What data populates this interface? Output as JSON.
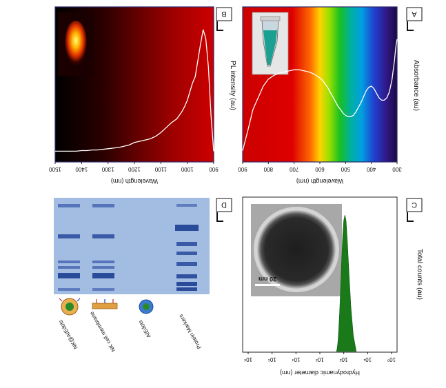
{
  "note_rendering": "",
  "panels": {
    "A": {
      "letter": "A",
      "xlabel": "Wavelength (nm)",
      "ylabel": "Absorbance (au)"
    },
    "B": {
      "letter": "B",
      "xlabel": "Wavelength (nm)",
      "ylabel": "PL intensity (au)"
    },
    "C": {
      "letter": "C",
      "xlabel": "Hydrodynamic diameter (nm)",
      "ylabel": "Total counts (au)",
      "scale_bar": "20 nm"
    },
    "D": {
      "letter": "D",
      "lanes": [
        "Protein Markers",
        "AIEdots",
        "NK cell membrane",
        "NK@AIEdots"
      ]
    }
  },
  "colors": {
    "panelB_bg_dark": "#000000",
    "panelB_bg_red": "#cc0000",
    "dls_fill": "#1a7a1a",
    "gel_bg": "#9fb8e0",
    "band": "#3a5aa8"
  },
  "chart_data": [
    {
      "type": "line",
      "panel": "A",
      "xlabel": "Wavelength (nm)",
      "ylabel": "Absorbance (au)",
      "xlim": [
        300,
        900
      ],
      "xticks": [
        "300",
        "400",
        "500",
        "600",
        "700",
        "800",
        "900"
      ],
      "x_reversed": true,
      "x": [
        300,
        305,
        310,
        320,
        330,
        340,
        350,
        360,
        370,
        380,
        390,
        400,
        410,
        420,
        430,
        440,
        450,
        460,
        470,
        480,
        490,
        500,
        510,
        520,
        530,
        540,
        550,
        560,
        570,
        580,
        590,
        600,
        620,
        640,
        660,
        680,
        700,
        720,
        740,
        760,
        780,
        800,
        820,
        840,
        860,
        880,
        900
      ],
      "y": [
        1.0,
        0.93,
        0.82,
        0.65,
        0.55,
        0.5,
        0.48,
        0.48,
        0.5,
        0.54,
        0.58,
        0.6,
        0.59,
        0.56,
        0.51,
        0.46,
        0.42,
        0.38,
        0.35,
        0.34,
        0.34,
        0.35,
        0.37,
        0.4,
        0.43,
        0.47,
        0.51,
        0.55,
        0.59,
        0.62,
        0.65,
        0.67,
        0.7,
        0.72,
        0.73,
        0.74,
        0.74,
        0.73,
        0.72,
        0.71,
        0.69,
        0.66,
        0.6,
        0.5,
        0.4,
        0.22,
        0.05
      ]
    },
    {
      "type": "line",
      "panel": "B",
      "xlabel": "Wavelength (nm)",
      "ylabel": "PL intensity (au)",
      "xlim": [
        900,
        1500
      ],
      "xticks": [
        "900",
        "1000",
        "1100",
        "1200",
        "1300",
        "1400",
        "1500"
      ],
      "x_reversed": true,
      "x": [
        900,
        910,
        920,
        930,
        940,
        950,
        960,
        970,
        980,
        990,
        1000,
        1010,
        1020,
        1030,
        1040,
        1060,
        1080,
        1100,
        1120,
        1140,
        1160,
        1180,
        1200,
        1220,
        1240,
        1260,
        1280,
        1300,
        1320,
        1340,
        1360,
        1380,
        1400,
        1420,
        1440,
        1460,
        1480,
        1500
      ],
      "y": [
        0.02,
        0.3,
        0.7,
        0.93,
        1.0,
        0.88,
        0.75,
        0.62,
        0.57,
        0.5,
        0.43,
        0.38,
        0.34,
        0.31,
        0.28,
        0.25,
        0.21,
        0.17,
        0.14,
        0.12,
        0.11,
        0.1,
        0.09,
        0.07,
        0.06,
        0.05,
        0.045,
        0.04,
        0.035,
        0.03,
        0.03,
        0.025,
        0.025,
        0.02,
        0.02,
        0.02,
        0.02,
        0.02
      ]
    },
    {
      "type": "area",
      "panel": "C",
      "xlabel": "Hydrodynamic diameter (nm)",
      "ylabel": "Total counts (au)",
      "x_log": true,
      "x_reversed": true,
      "xticks": [
        "10⁰",
        "10¹",
        "10²",
        "10³",
        "10⁴",
        "10⁵",
        "10⁶"
      ],
      "x": [
        30,
        40,
        50,
        60,
        70,
        80,
        90,
        100,
        110,
        120,
        130,
        140,
        150,
        160,
        170,
        180,
        190,
        200
      ],
      "y": [
        0.0,
        0.12,
        0.32,
        0.56,
        0.8,
        0.96,
        1.0,
        0.96,
        0.85,
        0.7,
        0.55,
        0.4,
        0.28,
        0.18,
        0.1,
        0.05,
        0.02,
        0.0
      ]
    }
  ]
}
